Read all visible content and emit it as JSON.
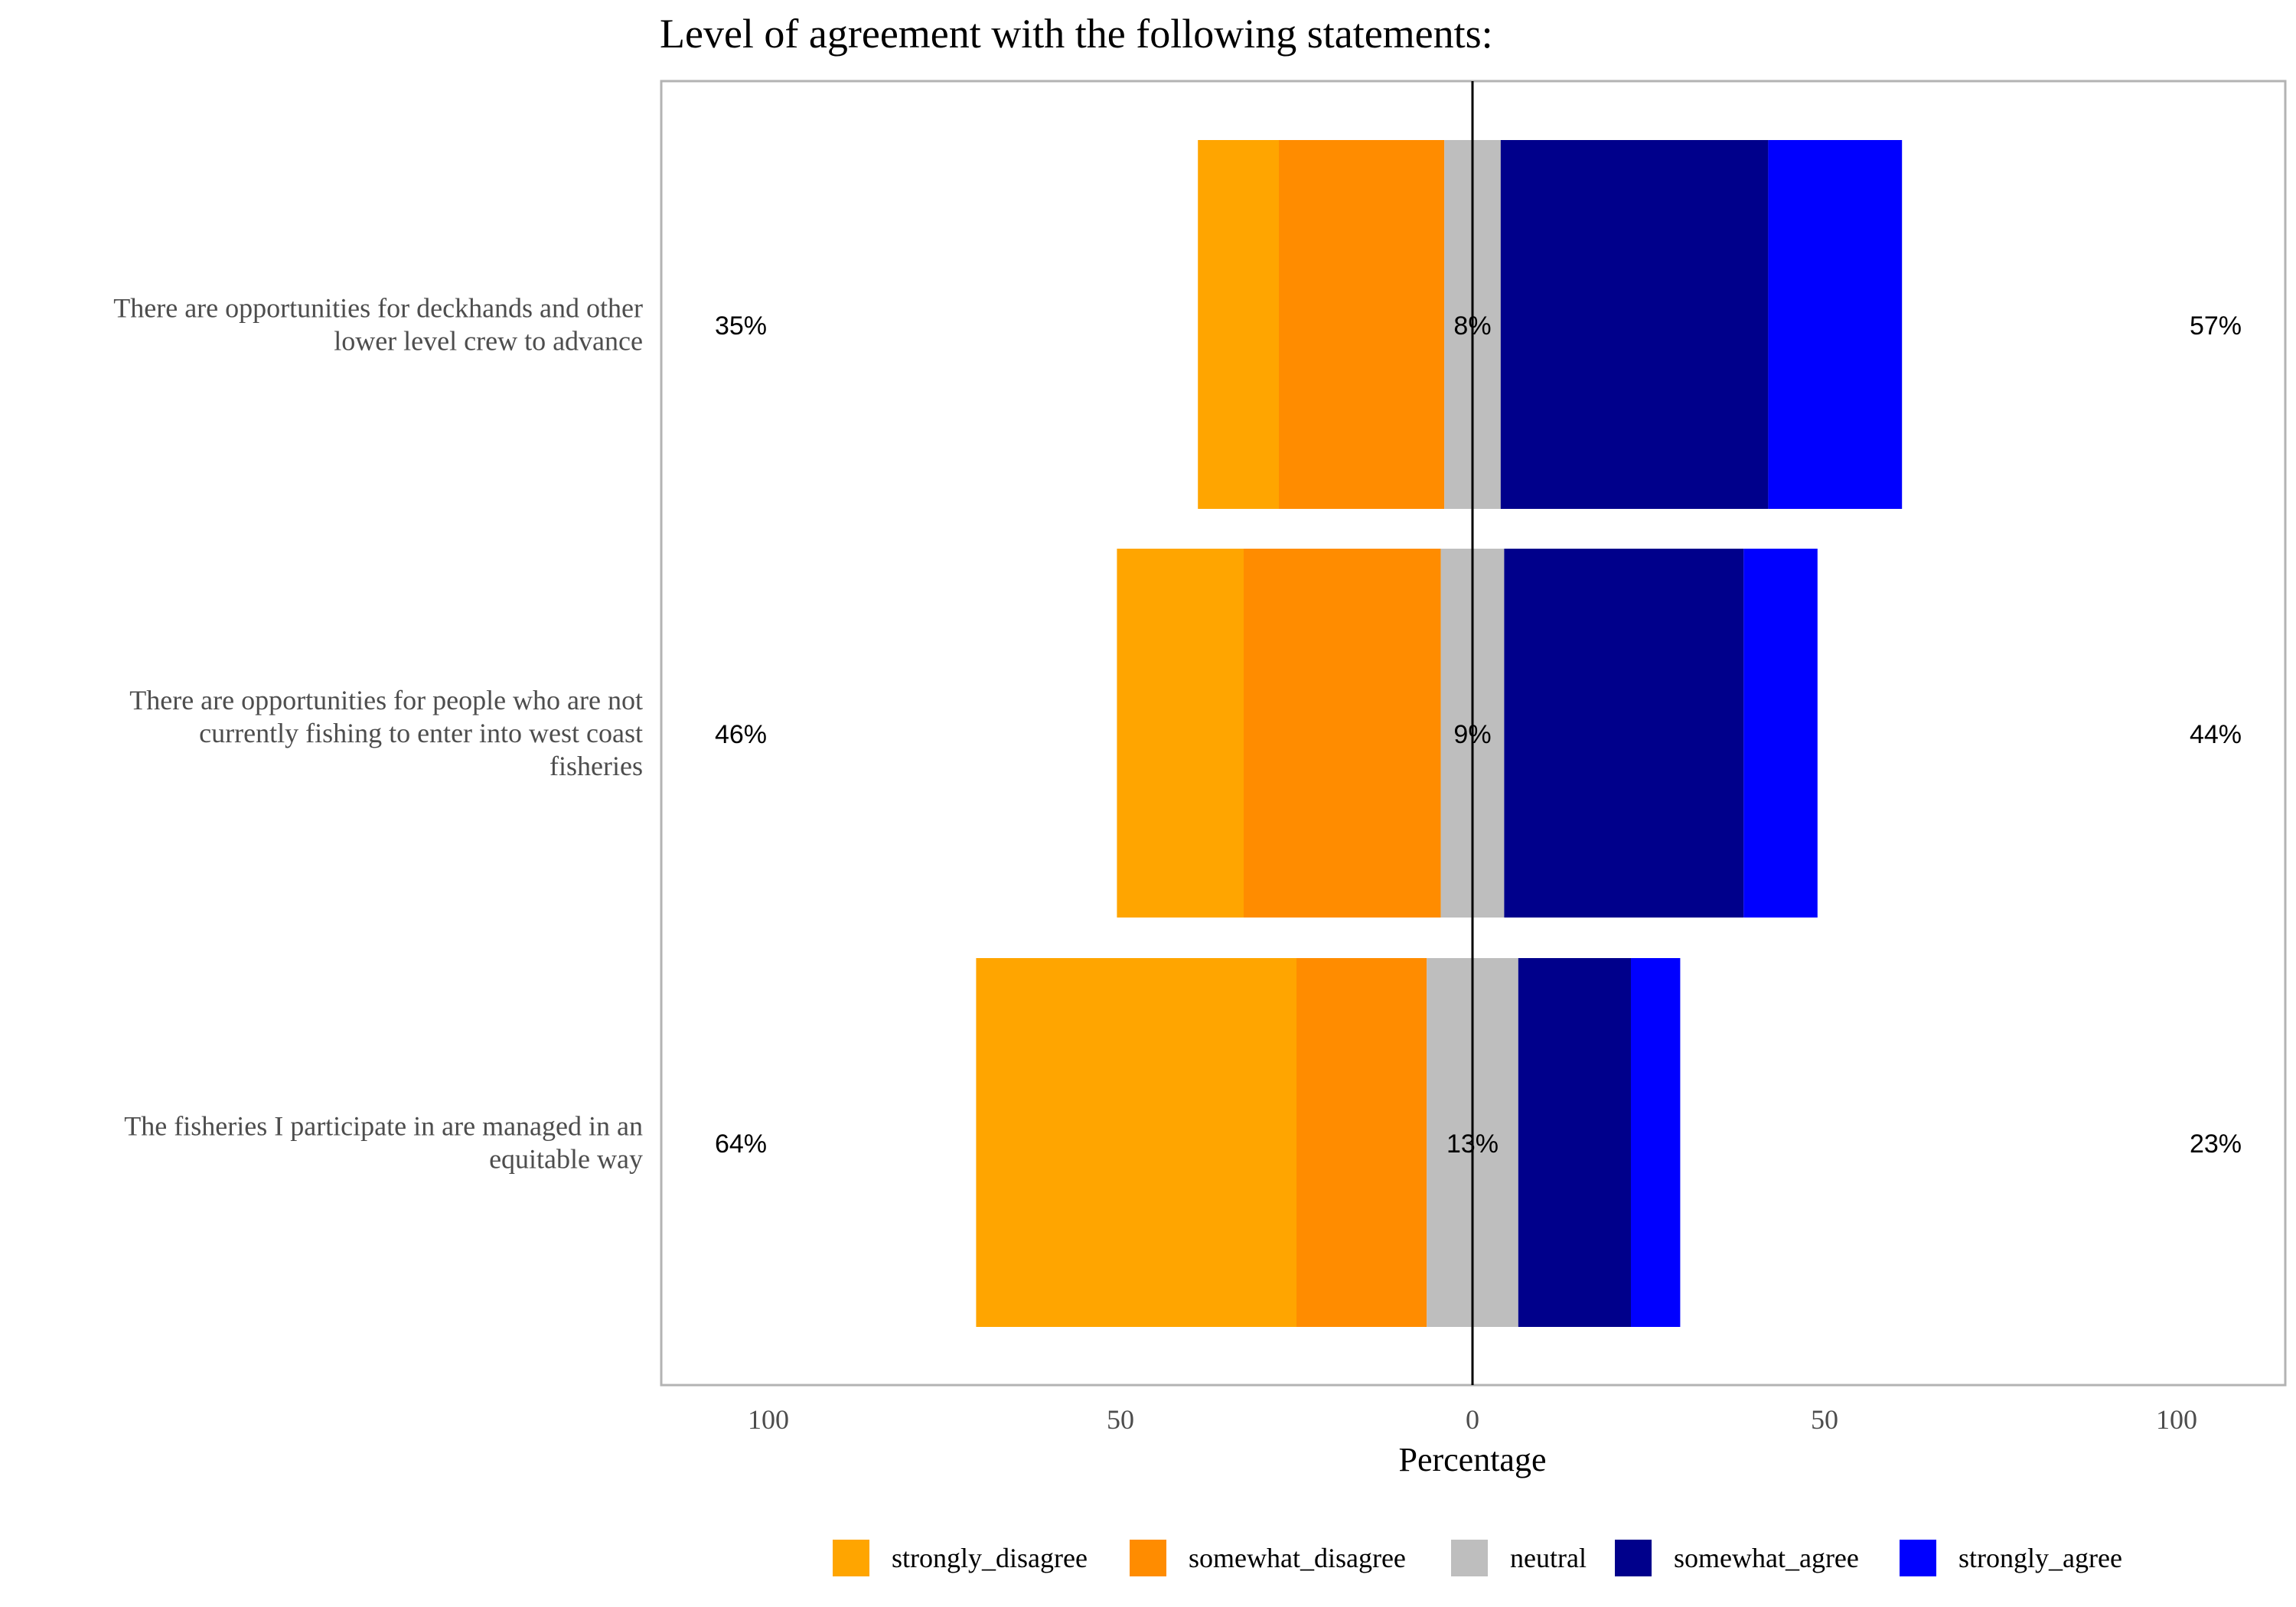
{
  "chart_data": {
    "type": "bar",
    "orientation": "horizontal",
    "stacked": "diverging",
    "title": "Level of agreement with the following statements:",
    "xlabel": "Percentage",
    "ylabel": "",
    "xlim": [
      -100,
      100
    ],
    "x_ticks": [
      -100,
      -50,
      0,
      50,
      100
    ],
    "x_tick_labels": [
      "100",
      "50",
      "0",
      "50",
      "100"
    ],
    "grid": false,
    "legend_position": "bottom",
    "categories": [
      "There are opportunities for deckhands and other lower level crew to advance",
      "There are opportunities for people who are not currently fishing to enter into west coast fisheries",
      "The fisheries I participate in are managed in an equitable way"
    ],
    "category_lines": [
      [
        "There are opportunities for deckhands and other",
        "lower level crew to advance"
      ],
      [
        "There are opportunities for people who are not",
        "currently fishing to enter into west coast",
        "fisheries"
      ],
      [
        "The fisheries I participate in are managed in an",
        "equitable way"
      ]
    ],
    "series": [
      {
        "name": "strongly_disagree",
        "color": "#FFA500",
        "values": [
          11.5,
          18,
          45.5
        ]
      },
      {
        "name": "somewhat_disagree",
        "color": "#FF8C00",
        "values": [
          23.5,
          28,
          18.5
        ]
      },
      {
        "name": "neutral",
        "color": "#BEBEBE",
        "values": [
          8,
          9,
          13
        ]
      },
      {
        "name": "somewhat_agree",
        "color": "#00008B",
        "values": [
          38,
          34,
          16
        ]
      },
      {
        "name": "strongly_agree",
        "color": "#0000FF",
        "values": [
          19,
          10.5,
          7
        ]
      }
    ],
    "disagree_labels": [
      "35%",
      "46%",
      "64%"
    ],
    "neutral_labels": [
      "8%",
      "9%",
      "13%"
    ],
    "agree_labels": [
      "57%",
      "44%",
      "23%"
    ]
  }
}
